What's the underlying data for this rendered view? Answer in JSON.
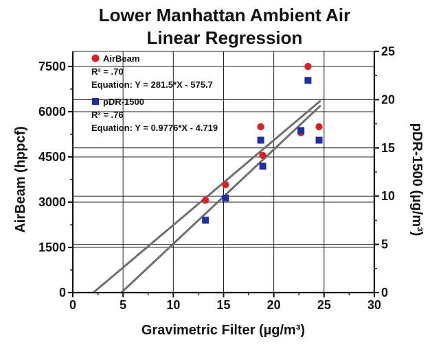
{
  "chart_data": {
    "type": "scatter",
    "title_lines": [
      "Lower Manhattan Ambient Air",
      "Linear Regression"
    ],
    "xlabel": "Gravimetric Filter (µg/m³)",
    "ylabel_left": "AirBeam (hppcf)",
    "ylabel_right": "pDR-1500 (µg/m³)",
    "xlim": [
      0,
      30
    ],
    "ylim_left": [
      0,
      7500
    ],
    "ylim_right": [
      0,
      25
    ],
    "x_ticks": [
      "0",
      "5",
      "10",
      "15",
      "20",
      "25",
      "30"
    ],
    "y_left_ticks": [
      "0",
      "1500",
      "3000",
      "4500",
      "6000",
      "7500"
    ],
    "y_right_ticks": [
      "0",
      "5",
      "10",
      "15",
      "20",
      "25"
    ],
    "grid": true,
    "legend_placement": "top-left",
    "series": [
      {
        "name": "AirBeam",
        "axis": "left",
        "marker": "circle",
        "color": "#d2232a",
        "r2_label": "R² = .70",
        "equation_label": "Equation: Y = 281.5*X - 575.7",
        "slope": 281.5,
        "intercept": -575.7,
        "points": [
          {
            "x": 13.2,
            "y": 3060
          },
          {
            "x": 15.2,
            "y": 3580
          },
          {
            "x": 18.7,
            "y": 5500
          },
          {
            "x": 18.9,
            "y": 4550
          },
          {
            "x": 22.7,
            "y": 5300
          },
          {
            "x": 23.4,
            "y": 7500
          },
          {
            "x": 24.5,
            "y": 5500
          }
        ]
      },
      {
        "name": "pDR-1500",
        "axis": "right",
        "marker": "square",
        "color": "#1f2fa0",
        "r2_label": "R² = .76",
        "equation_label": "Equation: Y = 0.9776*X - 4.719",
        "slope": 0.9776,
        "intercept": -4.719,
        "points": [
          {
            "x": 13.2,
            "y": 7.5
          },
          {
            "x": 15.2,
            "y": 9.8
          },
          {
            "x": 18.7,
            "y": 15.8
          },
          {
            "x": 18.9,
            "y": 13.1
          },
          {
            "x": 22.7,
            "y": 16.8
          },
          {
            "x": 23.4,
            "y": 22.0
          },
          {
            "x": 24.5,
            "y": 15.8
          }
        ]
      }
    ]
  }
}
